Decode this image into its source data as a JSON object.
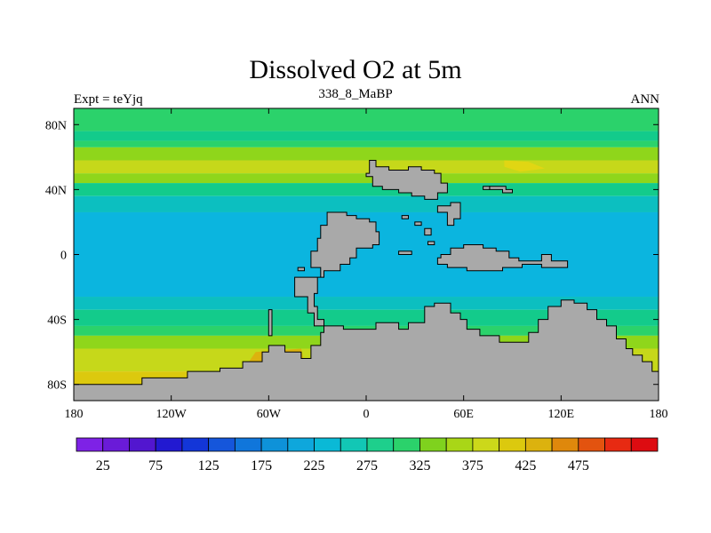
{
  "title": "Dissolved O2 at 5m",
  "subtitle_center": "338_8_MaBP",
  "subtitle_left": "Expt = teYjq",
  "subtitle_right": "ANN",
  "land_color": "#a9a9a9",
  "chart_data": {
    "type": "heatmap",
    "variable": "Dissolved O2",
    "depth": "5m",
    "xlim": [
      -180,
      180
    ],
    "ylim": [
      -90,
      90
    ],
    "x_ticks": [
      {
        "value": -180,
        "label": "180"
      },
      {
        "value": -120,
        "label": "120W"
      },
      {
        "value": -60,
        "label": "60W"
      },
      {
        "value": 0,
        "label": "0"
      },
      {
        "value": 60,
        "label": "60E"
      },
      {
        "value": 120,
        "label": "120E"
      },
      {
        "value": 180,
        "label": "180"
      }
    ],
    "y_ticks": [
      {
        "value": 80,
        "label": "80N"
      },
      {
        "value": 40,
        "label": "40N"
      },
      {
        "value": 0,
        "label": "0"
      },
      {
        "value": -40,
        "label": "40S"
      },
      {
        "value": -80,
        "label": "80S"
      }
    ],
    "zonal_bands": [
      {
        "lat_top": 90,
        "lat_bottom": 76,
        "color": "#2bd26b"
      },
      {
        "lat_top": 76,
        "lat_bottom": 70,
        "color": "#13cb8b"
      },
      {
        "lat_top": 70,
        "lat_bottom": 66,
        "color": "#2bd26b"
      },
      {
        "lat_top": 66,
        "lat_bottom": 58,
        "color": "#8fd61b"
      },
      {
        "lat_top": 58,
        "lat_bottom": 50,
        "color": "#c6d81a"
      },
      {
        "lat_top": 50,
        "lat_bottom": 44,
        "color": "#8fd61b"
      },
      {
        "lat_top": 44,
        "lat_bottom": 36,
        "color": "#13cb8b"
      },
      {
        "lat_top": 36,
        "lat_bottom": 26,
        "color": "#0cbfc0"
      },
      {
        "lat_top": 26,
        "lat_bottom": -26,
        "color": "#0bb5df"
      },
      {
        "lat_top": -26,
        "lat_bottom": -34,
        "color": "#0cbfc0"
      },
      {
        "lat_top": -34,
        "lat_bottom": -44,
        "color": "#13cb8b"
      },
      {
        "lat_top": -44,
        "lat_bottom": -50,
        "color": "#2bd26b"
      },
      {
        "lat_top": -50,
        "lat_bottom": -58,
        "color": "#8fd61b"
      },
      {
        "lat_top": -58,
        "lat_bottom": -72,
        "color": "#c6d81a"
      },
      {
        "lat_top": -72,
        "lat_bottom": -90,
        "color": "#dcc90e"
      }
    ],
    "features": [
      {
        "color": "#e1d613",
        "points": [
          [
            85,
            58
          ],
          [
            100,
            57
          ],
          [
            110,
            53
          ],
          [
            95,
            51
          ],
          [
            85,
            54
          ]
        ]
      },
      {
        "color": "#dcb20e",
        "points": [
          [
            -68,
            -60
          ],
          [
            -40,
            -58
          ],
          [
            -38,
            -68
          ],
          [
            -60,
            -74
          ],
          [
            -75,
            -70
          ]
        ]
      },
      {
        "color": "#e3530f",
        "points": [
          [
            -135,
            -80
          ],
          [
            -95,
            -74
          ],
          [
            -70,
            -72
          ],
          [
            -72,
            -82
          ],
          [
            -135,
            -82
          ]
        ]
      }
    ],
    "land": [
      {
        "points": [
          [
            -24,
            26
          ],
          [
            -12,
            26
          ],
          [
            -12,
            24
          ],
          [
            -6,
            24
          ],
          [
            -6,
            22
          ],
          [
            2,
            22
          ],
          [
            2,
            20
          ],
          [
            6,
            20
          ],
          [
            6,
            14
          ],
          [
            8,
            14
          ],
          [
            8,
            6
          ],
          [
            4,
            6
          ],
          [
            4,
            4
          ],
          [
            -6,
            4
          ],
          [
            -6,
            -2
          ],
          [
            -10,
            -2
          ],
          [
            -10,
            -6
          ],
          [
            -16,
            -6
          ],
          [
            -16,
            -10
          ],
          [
            -26,
            -10
          ],
          [
            -26,
            -14
          ],
          [
            -44,
            -14
          ],
          [
            -44,
            -26
          ],
          [
            -36,
            -26
          ],
          [
            -36,
            -36
          ],
          [
            -32,
            -36
          ],
          [
            -32,
            -44
          ],
          [
            -14,
            -44
          ],
          [
            -14,
            -46
          ],
          [
            6,
            -46
          ],
          [
            6,
            -42
          ],
          [
            20,
            -42
          ],
          [
            20,
            -46
          ],
          [
            26,
            -46
          ],
          [
            26,
            -42
          ],
          [
            36,
            -42
          ],
          [
            36,
            -32
          ],
          [
            42,
            -32
          ],
          [
            42,
            -30
          ],
          [
            52,
            -30
          ],
          [
            52,
            -36
          ],
          [
            58,
            -36
          ],
          [
            58,
            -40
          ],
          [
            62,
            -40
          ],
          [
            62,
            -46
          ],
          [
            70,
            -46
          ],
          [
            70,
            -50
          ],
          [
            82,
            -50
          ],
          [
            82,
            -54
          ],
          [
            100,
            -54
          ],
          [
            100,
            -48
          ],
          [
            106,
            -48
          ],
          [
            106,
            -40
          ],
          [
            112,
            -40
          ],
          [
            112,
            -32
          ],
          [
            120,
            -32
          ],
          [
            120,
            -28
          ],
          [
            128,
            -28
          ],
          [
            128,
            -30
          ],
          [
            136,
            -30
          ],
          [
            136,
            -34
          ],
          [
            142,
            -34
          ],
          [
            142,
            -40
          ],
          [
            148,
            -40
          ],
          [
            148,
            -44
          ],
          [
            154,
            -44
          ],
          [
            154,
            -52
          ],
          [
            160,
            -52
          ],
          [
            160,
            -58
          ],
          [
            164,
            -58
          ],
          [
            164,
            -62
          ],
          [
            170,
            -62
          ],
          [
            170,
            -66
          ],
          [
            176,
            -66
          ],
          [
            176,
            -72
          ],
          [
            180,
            -72
          ],
          [
            180,
            -90
          ],
          [
            -180,
            -90
          ],
          [
            -180,
            -80
          ],
          [
            -138,
            -80
          ],
          [
            -138,
            -76
          ],
          [
            -110,
            -76
          ],
          [
            -110,
            -72
          ],
          [
            -90,
            -72
          ],
          [
            -90,
            -70
          ],
          [
            -76,
            -70
          ],
          [
            -76,
            -66
          ],
          [
            -64,
            -66
          ],
          [
            -64,
            -60
          ],
          [
            -60,
            -60
          ],
          [
            -60,
            -56
          ],
          [
            -50,
            -56
          ],
          [
            -50,
            -60
          ],
          [
            -40,
            -60
          ],
          [
            -40,
            -64
          ],
          [
            -34,
            -64
          ],
          [
            -34,
            -56
          ],
          [
            -28,
            -56
          ],
          [
            -28,
            -48
          ],
          [
            -26,
            -48
          ],
          [
            -26,
            -40
          ],
          [
            -30,
            -40
          ],
          [
            -30,
            -32
          ],
          [
            -32,
            -32
          ],
          [
            -32,
            -24
          ],
          [
            -30,
            -24
          ],
          [
            -30,
            -14
          ],
          [
            -28,
            -14
          ],
          [
            -28,
            -8
          ],
          [
            -34,
            -8
          ],
          [
            -34,
            2
          ],
          [
            -30,
            2
          ],
          [
            -30,
            10
          ],
          [
            -28,
            10
          ],
          [
            -28,
            18
          ],
          [
            -24,
            18
          ]
        ]
      },
      {
        "points": [
          [
            2,
            58
          ],
          [
            6,
            58
          ],
          [
            6,
            54
          ],
          [
            14,
            54
          ],
          [
            14,
            52
          ],
          [
            26,
            52
          ],
          [
            26,
            54
          ],
          [
            34,
            54
          ],
          [
            34,
            52
          ],
          [
            42,
            52
          ],
          [
            42,
            50
          ],
          [
            46,
            50
          ],
          [
            46,
            44
          ],
          [
            50,
            44
          ],
          [
            50,
            38
          ],
          [
            44,
            38
          ],
          [
            44,
            34
          ],
          [
            36,
            34
          ],
          [
            36,
            36
          ],
          [
            28,
            36
          ],
          [
            28,
            38
          ],
          [
            20,
            38
          ],
          [
            20,
            40
          ],
          [
            10,
            40
          ],
          [
            10,
            42
          ],
          [
            4,
            42
          ],
          [
            4,
            48
          ],
          [
            0,
            48
          ],
          [
            0,
            50
          ],
          [
            2,
            50
          ]
        ]
      },
      {
        "points": [
          [
            52,
            32
          ],
          [
            58,
            32
          ],
          [
            58,
            22
          ],
          [
            54,
            22
          ],
          [
            54,
            18
          ],
          [
            50,
            18
          ],
          [
            50,
            26
          ],
          [
            44,
            26
          ],
          [
            44,
            30
          ],
          [
            52,
            30
          ]
        ]
      },
      {
        "points": [
          [
            46,
            0
          ],
          [
            52,
            0
          ],
          [
            52,
            4
          ],
          [
            60,
            4
          ],
          [
            60,
            6
          ],
          [
            72,
            6
          ],
          [
            72,
            4
          ],
          [
            80,
            4
          ],
          [
            80,
            2
          ],
          [
            88,
            2
          ],
          [
            88,
            -2
          ],
          [
            94,
            -2
          ],
          [
            94,
            -4
          ],
          [
            108,
            -4
          ],
          [
            108,
            0
          ],
          [
            114,
            0
          ],
          [
            114,
            -4
          ],
          [
            124,
            -4
          ],
          [
            124,
            -8
          ],
          [
            108,
            -8
          ],
          [
            108,
            -6
          ],
          [
            96,
            -6
          ],
          [
            96,
            -8
          ],
          [
            84,
            -8
          ],
          [
            84,
            -10
          ],
          [
            62,
            -10
          ],
          [
            62,
            -8
          ],
          [
            50,
            -8
          ],
          [
            50,
            -6
          ],
          [
            44,
            -6
          ],
          [
            44,
            -2
          ],
          [
            46,
            -2
          ]
        ]
      },
      {
        "points": [
          [
            76,
            42
          ],
          [
            86,
            42
          ],
          [
            86,
            40
          ],
          [
            90,
            40
          ],
          [
            90,
            38
          ],
          [
            84,
            38
          ],
          [
            84,
            40
          ],
          [
            76,
            40
          ]
        ]
      },
      {
        "points": [
          [
            72,
            42
          ],
          [
            76,
            42
          ],
          [
            76,
            40
          ],
          [
            72,
            40
          ]
        ]
      },
      {
        "points": [
          [
            22,
            24
          ],
          [
            26,
            24
          ],
          [
            26,
            22
          ],
          [
            22,
            22
          ]
        ]
      },
      {
        "points": [
          [
            30,
            20
          ],
          [
            34,
            20
          ],
          [
            34,
            18
          ],
          [
            30,
            18
          ]
        ]
      },
      {
        "points": [
          [
            36,
            16
          ],
          [
            40,
            16
          ],
          [
            40,
            12
          ],
          [
            36,
            12
          ]
        ]
      },
      {
        "points": [
          [
            38,
            8
          ],
          [
            42,
            8
          ],
          [
            42,
            6
          ],
          [
            38,
            6
          ]
        ]
      },
      {
        "points": [
          [
            20,
            2
          ],
          [
            28,
            2
          ],
          [
            28,
            0
          ],
          [
            20,
            0
          ]
        ]
      },
      {
        "points": [
          [
            -42,
            -8
          ],
          [
            -38,
            -8
          ],
          [
            -38,
            -10
          ],
          [
            -42,
            -10
          ]
        ]
      },
      {
        "points": [
          [
            -60,
            -34
          ],
          [
            -58,
            -34
          ],
          [
            -58,
            -50
          ],
          [
            -60,
            -50
          ]
        ]
      }
    ],
    "colorbar": {
      "colors": [
        "#7e22e6",
        "#6a1bd8",
        "#5216cf",
        "#2219d1",
        "#1336d8",
        "#1556db",
        "#1076db",
        "#0e92d9",
        "#0ea7dc",
        "#0ab9d6",
        "#12c7b5",
        "#1ecf8c",
        "#2bd26b",
        "#7fd21e",
        "#a9d617",
        "#ccd81a",
        "#dcc90e",
        "#dcb20e",
        "#df880c",
        "#e3530f",
        "#e72a12",
        "#dd0c11"
      ],
      "labels": [
        {
          "boundary": 1,
          "text": "25"
        },
        {
          "boundary": 3,
          "text": "75"
        },
        {
          "boundary": 5,
          "text": "125"
        },
        {
          "boundary": 7,
          "text": "175"
        },
        {
          "boundary": 9,
          "text": "225"
        },
        {
          "boundary": 11,
          "text": "275"
        },
        {
          "boundary": 13,
          "text": "325"
        },
        {
          "boundary": 15,
          "text": "375"
        },
        {
          "boundary": 17,
          "text": "425"
        },
        {
          "boundary": 19,
          "text": "475"
        }
      ]
    }
  }
}
